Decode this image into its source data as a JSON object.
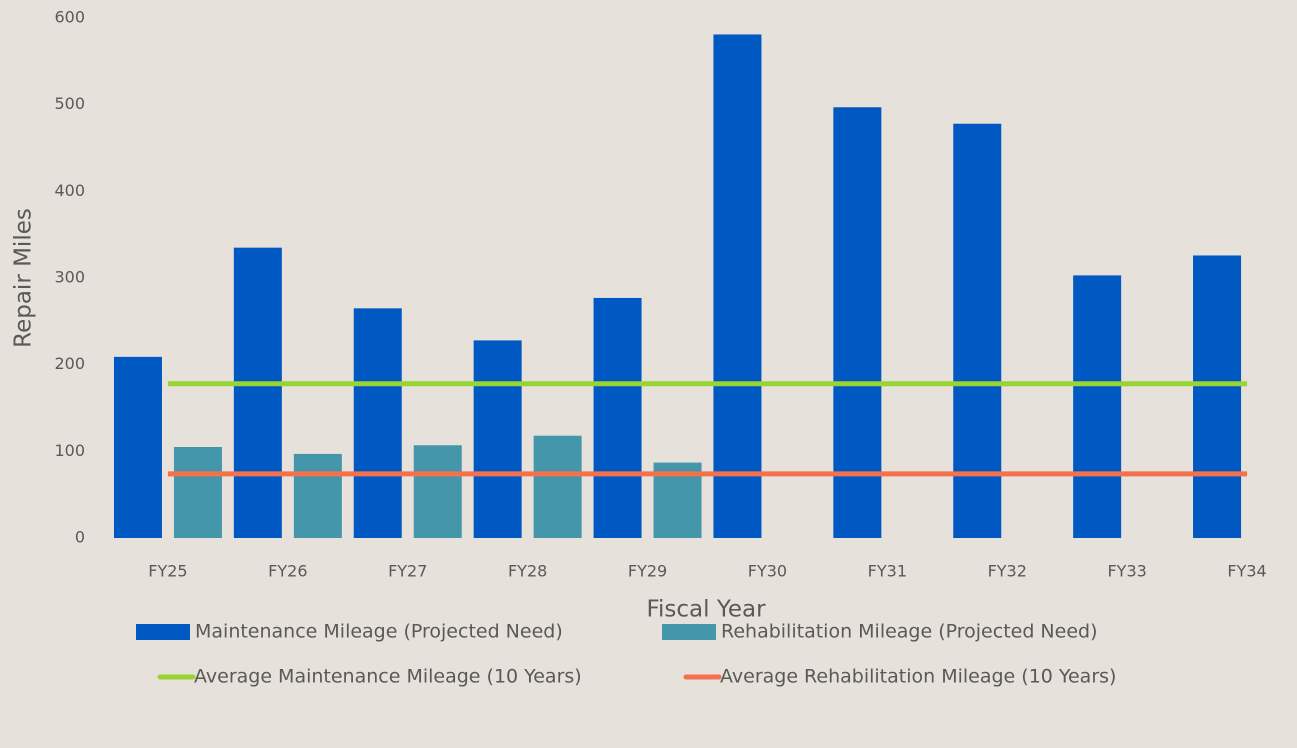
{
  "chart_data": {
    "type": "bar",
    "x_label": "Fiscal Year",
    "y_label": "Repair Miles",
    "categories": [
      "FY25",
      "FY26",
      "FY27",
      "FY28",
      "FY29",
      "FY30",
      "FY31",
      "FY32",
      "FY33",
      "FY34"
    ],
    "series": [
      {
        "name": "Maintenance Mileage (Projected Need)",
        "type": "bar",
        "color": "#0058c2",
        "values": [
          209,
          335,
          265,
          228,
          277,
          581,
          497,
          478,
          303,
          326
        ]
      },
      {
        "name": "Rehabilitation Mileage (Projected Need)",
        "type": "bar",
        "color": "#4497aa",
        "values": [
          105,
          97,
          107,
          118,
          87,
          null,
          null,
          null,
          null,
          null
        ]
      },
      {
        "name": "Average Maintenance Mileage (10 Years)",
        "type": "line",
        "color": "#99d433",
        "values": [
          178,
          178,
          178,
          178,
          178,
          178,
          178,
          178,
          178,
          178
        ]
      },
      {
        "name": "Average Rehabilitation Mileage (10 Years)",
        "type": "line",
        "color": "#f5714b",
        "values": [
          74,
          74,
          74,
          74,
          74,
          74,
          74,
          74,
          74,
          74
        ]
      }
    ],
    "ylim": [
      0,
      600
    ],
    "yticks": [
      0,
      100,
      200,
      300,
      400,
      500,
      600
    ],
    "grid": false
  }
}
